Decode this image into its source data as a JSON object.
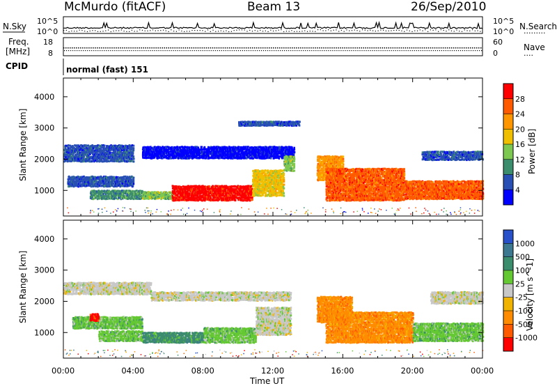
{
  "header": {
    "station": "McMurdo (fitACF)",
    "beam": "Beam 13",
    "date": "26/Sep/2010"
  },
  "noise_panel": {
    "left_label": "N.Sky",
    "right_label": "N.Search",
    "right_legend_line": "·········",
    "left_ticks": [
      "10^5",
      "10^0"
    ],
    "right_ticks": [
      "10^5",
      "10^0"
    ]
  },
  "freq_panel": {
    "left_label_line1": "Freq.",
    "left_label_line2": "[MHz]",
    "right_label": "Nave",
    "right_legend_line": "····",
    "left_ticks": [
      "18",
      "8"
    ],
    "right_ticks": [
      "60",
      "0"
    ]
  },
  "cpid_panel": {
    "label": "CPID",
    "mode_text": "normal (fast) 151"
  },
  "chart_data": [
    {
      "type": "heatmap",
      "title": "Power",
      "ylabel": "Slant Range [km]",
      "xlabel": "Time UT",
      "ylim": [
        180,
        4600
      ],
      "y_ticks": [
        "1000",
        "2000",
        "3000",
        "4000"
      ],
      "x_ticks": [
        "00:00",
        "04:00",
        "08:00",
        "12:00",
        "16:00",
        "20:00",
        "00:00"
      ],
      "colorbar": {
        "label": "Power [dB]",
        "ticks": [
          "28",
          "24",
          "20",
          "16",
          "12",
          "8",
          "4"
        ],
        "colors": [
          "#ff0000",
          "#ff5a00",
          "#ff9600",
          "#f0c000",
          "#7cc850",
          "#3c8c6e",
          "#2850b4",
          "#0000ff"
        ]
      },
      "bands": [
        {
          "t0": 0.0,
          "t1": 4.0,
          "r0": 1900,
          "r1": 2450,
          "level": 6
        },
        {
          "t0": 4.5,
          "t1": 13.2,
          "r0": 2000,
          "r1": 2400,
          "level": 7
        },
        {
          "t0": 0.2,
          "t1": 4.0,
          "r0": 1100,
          "r1": 1450,
          "level": 6
        },
        {
          "t0": 1.5,
          "t1": 4.5,
          "r0": 700,
          "r1": 1000,
          "level": 5
        },
        {
          "t0": 4.5,
          "t1": 6.2,
          "r0": 700,
          "r1": 950,
          "level": 4
        },
        {
          "t0": 6.2,
          "t1": 10.8,
          "r0": 650,
          "r1": 1150,
          "level": 0
        },
        {
          "t0": 10.8,
          "t1": 12.6,
          "r0": 800,
          "r1": 1650,
          "level": 3
        },
        {
          "t0": 12.6,
          "t1": 13.2,
          "r0": 1600,
          "r1": 2100,
          "level": 4
        },
        {
          "t0": 14.5,
          "t1": 16.0,
          "r0": 1300,
          "r1": 2100,
          "level": 2
        },
        {
          "t0": 15.0,
          "t1": 19.5,
          "r0": 650,
          "r1": 1700,
          "level": 1
        },
        {
          "t0": 19.5,
          "t1": 24.0,
          "r0": 700,
          "r1": 1300,
          "level": 1
        },
        {
          "t0": 20.5,
          "t1": 24.0,
          "r0": 1950,
          "r1": 2250,
          "level": 6
        },
        {
          "t0": 10.0,
          "t1": 13.5,
          "r0": 3050,
          "r1": 3200,
          "level": 6
        }
      ]
    },
    {
      "type": "heatmap",
      "title": "Velocity",
      "ylabel": "Slant Range [km]",
      "xlabel": "Time UT",
      "ylim": [
        180,
        4600
      ],
      "y_ticks": [
        "1000",
        "2000",
        "3000",
        "4000"
      ],
      "x_ticks": [
        "00:00",
        "04:00",
        "08:00",
        "12:00",
        "16:00",
        "20:00",
        "00:00"
      ],
      "colorbar": {
        "label": "Velocity [m s^-1]",
        "ticks": [
          "1000",
          "500",
          "100",
          "25",
          "-25",
          "-100",
          "-500",
          "-1000"
        ],
        "colors": [
          "#2850c8",
          "#3c7890",
          "#3c8c6e",
          "#64c832",
          "#c8c8c8",
          "#f0b400",
          "#ff8c00",
          "#ff5a00",
          "#ff0000"
        ]
      },
      "bands": [
        {
          "t0": 0.0,
          "t1": 5.0,
          "r0": 2200,
          "r1": 2600,
          "level": 4
        },
        {
          "t0": 5.0,
          "t1": 13.0,
          "r0": 2000,
          "r1": 2300,
          "level": 4
        },
        {
          "t0": 0.5,
          "t1": 4.5,
          "r0": 1100,
          "r1": 1500,
          "level": 3
        },
        {
          "t0": 1.5,
          "t1": 2.0,
          "r0": 1350,
          "r1": 1600,
          "level": 8
        },
        {
          "t0": 2.0,
          "t1": 4.5,
          "r0": 700,
          "r1": 1050,
          "level": 3
        },
        {
          "t0": 4.5,
          "t1": 8.0,
          "r0": 650,
          "r1": 1000,
          "level": 2
        },
        {
          "t0": 8.0,
          "t1": 11.0,
          "r0": 650,
          "r1": 1150,
          "level": 3
        },
        {
          "t0": 11.0,
          "t1": 13.0,
          "r0": 900,
          "r1": 1800,
          "level": 4
        },
        {
          "t0": 14.5,
          "t1": 16.5,
          "r0": 1300,
          "r1": 2150,
          "level": 6
        },
        {
          "t0": 15.0,
          "t1": 20.0,
          "r0": 650,
          "r1": 1650,
          "level": 6
        },
        {
          "t0": 20.0,
          "t1": 24.0,
          "r0": 700,
          "r1": 1300,
          "level": 3
        },
        {
          "t0": 21.0,
          "t1": 24.0,
          "r0": 1900,
          "r1": 2300,
          "level": 4
        }
      ]
    }
  ]
}
